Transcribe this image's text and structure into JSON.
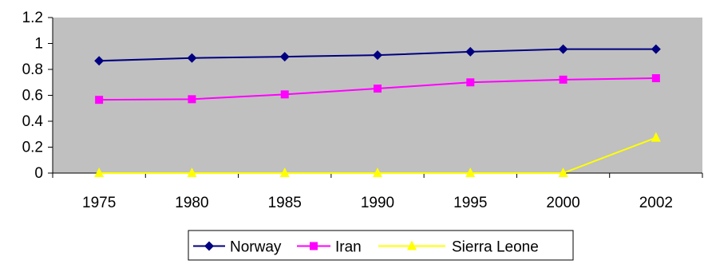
{
  "chart_data": {
    "type": "line",
    "categories": [
      "1975",
      "1980",
      "1985",
      "1990",
      "1995",
      "2000",
      "2002"
    ],
    "ylim": [
      0,
      1.2
    ],
    "yticks": [
      "0",
      "0.2",
      "0.4",
      "0.6",
      "0.8",
      "1",
      "1.2"
    ],
    "legend_position": "bottom",
    "grid": false,
    "plot_background": "#C0C0C0",
    "series": [
      {
        "name": "Norway",
        "color": "#000080",
        "marker": "diamond",
        "values": [
          0.866,
          0.888,
          0.898,
          0.91,
          0.936,
          0.956,
          0.956
        ]
      },
      {
        "name": "Iran",
        "color": "#FF00FF",
        "marker": "square",
        "values": [
          0.565,
          0.57,
          0.607,
          0.652,
          0.7,
          0.721,
          0.732
        ]
      },
      {
        "name": "Sierra Leone",
        "color": "#FFFF00",
        "marker": "triangle",
        "values": [
          0,
          0,
          0,
          0,
          0,
          0,
          0.273
        ]
      }
    ]
  }
}
